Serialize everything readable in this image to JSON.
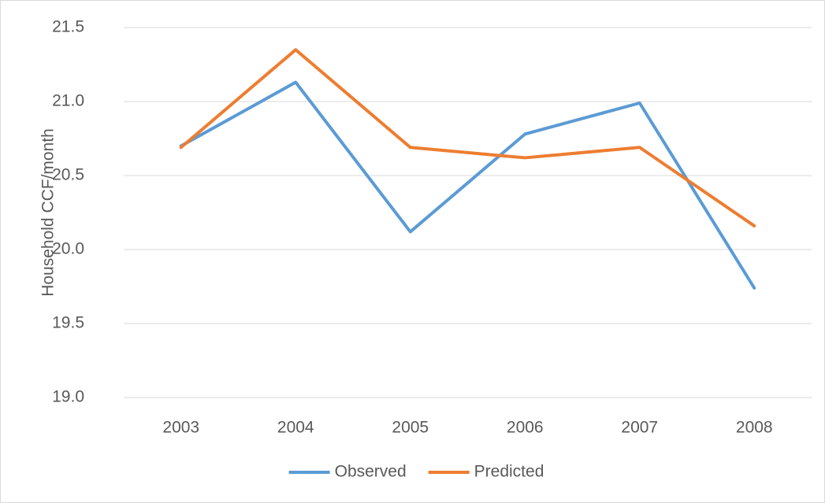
{
  "chart_data": {
    "type": "line",
    "y_label": "Household CCF/month",
    "categories": [
      "2003",
      "2004",
      "2005",
      "2006",
      "2007",
      "2008"
    ],
    "series": [
      {
        "name": "Observed",
        "color": "#5b9bd5",
        "values": [
          20.7,
          21.13,
          20.12,
          20.78,
          20.99,
          19.74
        ]
      },
      {
        "name": "Predicted",
        "color": "#ed7d31",
        "values": [
          20.69,
          21.35,
          20.69,
          20.62,
          20.69,
          20.16
        ]
      }
    ],
    "ylim": [
      19.0,
      21.5
    ],
    "yticks": [
      {
        "value": 19,
        "label": "19.0"
      },
      19.5,
      {
        "value": 20,
        "label": "20.0"
      },
      20.5,
      {
        "value": 21,
        "label": "21.0"
      },
      21.5
    ],
    "grid": true,
    "legend": "bottom"
  }
}
